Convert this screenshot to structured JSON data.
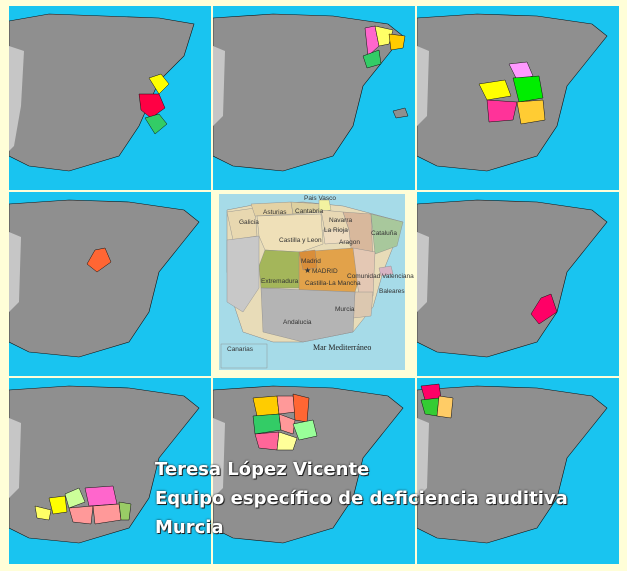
{
  "center_map": {
    "regions": [
      "Pais Vasco",
      "Asturias",
      "Cantabria",
      "Galicia",
      "Navarra",
      "La Rioja",
      "Castilla y Leon",
      "Aragon",
      "Cataluña",
      "Madrid",
      "MADRID",
      "Extremadura",
      "Castilla-La Mancha",
      "Comunidad Valenciana",
      "Baleares",
      "Murcia",
      "Andalucia"
    ],
    "sea_label": "Mar Mediterráneo",
    "inset_label": "Canarias"
  },
  "credits": {
    "line1": "Teresa López Vicente",
    "line2": "Equipo específico de deficiencia auditiva",
    "line3": "Murcia"
  },
  "colors": {
    "background": "#fffed8",
    "sea": "#19c4f0",
    "land": "#8f8f8f",
    "portugal": "#c6c6c6"
  },
  "tiles": [
    {
      "region": "Comunidad Valenciana",
      "colors": [
        "#ffff00",
        "#ff0044",
        "#33cc66"
      ]
    },
    {
      "region": "Cataluña",
      "colors": [
        "#ff66cc",
        "#ffff66",
        "#ffcc00",
        "#33cc66"
      ]
    },
    {
      "region": "Castilla-La Mancha",
      "colors": [
        "#ff99ff",
        "#ffff00",
        "#00ee00",
        "#ff3399",
        "#ffcc33"
      ]
    },
    {
      "region": "Madrid",
      "colors": [
        "#ff6633"
      ]
    },
    {
      "region": "Murcia",
      "colors": [
        "#ff0066"
      ]
    },
    {
      "region": "Andalucia",
      "colors": [
        "#ffff00",
        "#ff66cc",
        "#ccff99",
        "#ff9999",
        "#99cc66"
      ]
    },
    {
      "region": "Castilla y Leon",
      "colors": [
        "#ffcc00",
        "#ff9999",
        "#ff6633",
        "#33cc66",
        "#99ff99"
      ]
    },
    {
      "region": "Galicia",
      "colors": [
        "#ff0066",
        "#33cc33",
        "#ffcc66"
      ]
    }
  ]
}
